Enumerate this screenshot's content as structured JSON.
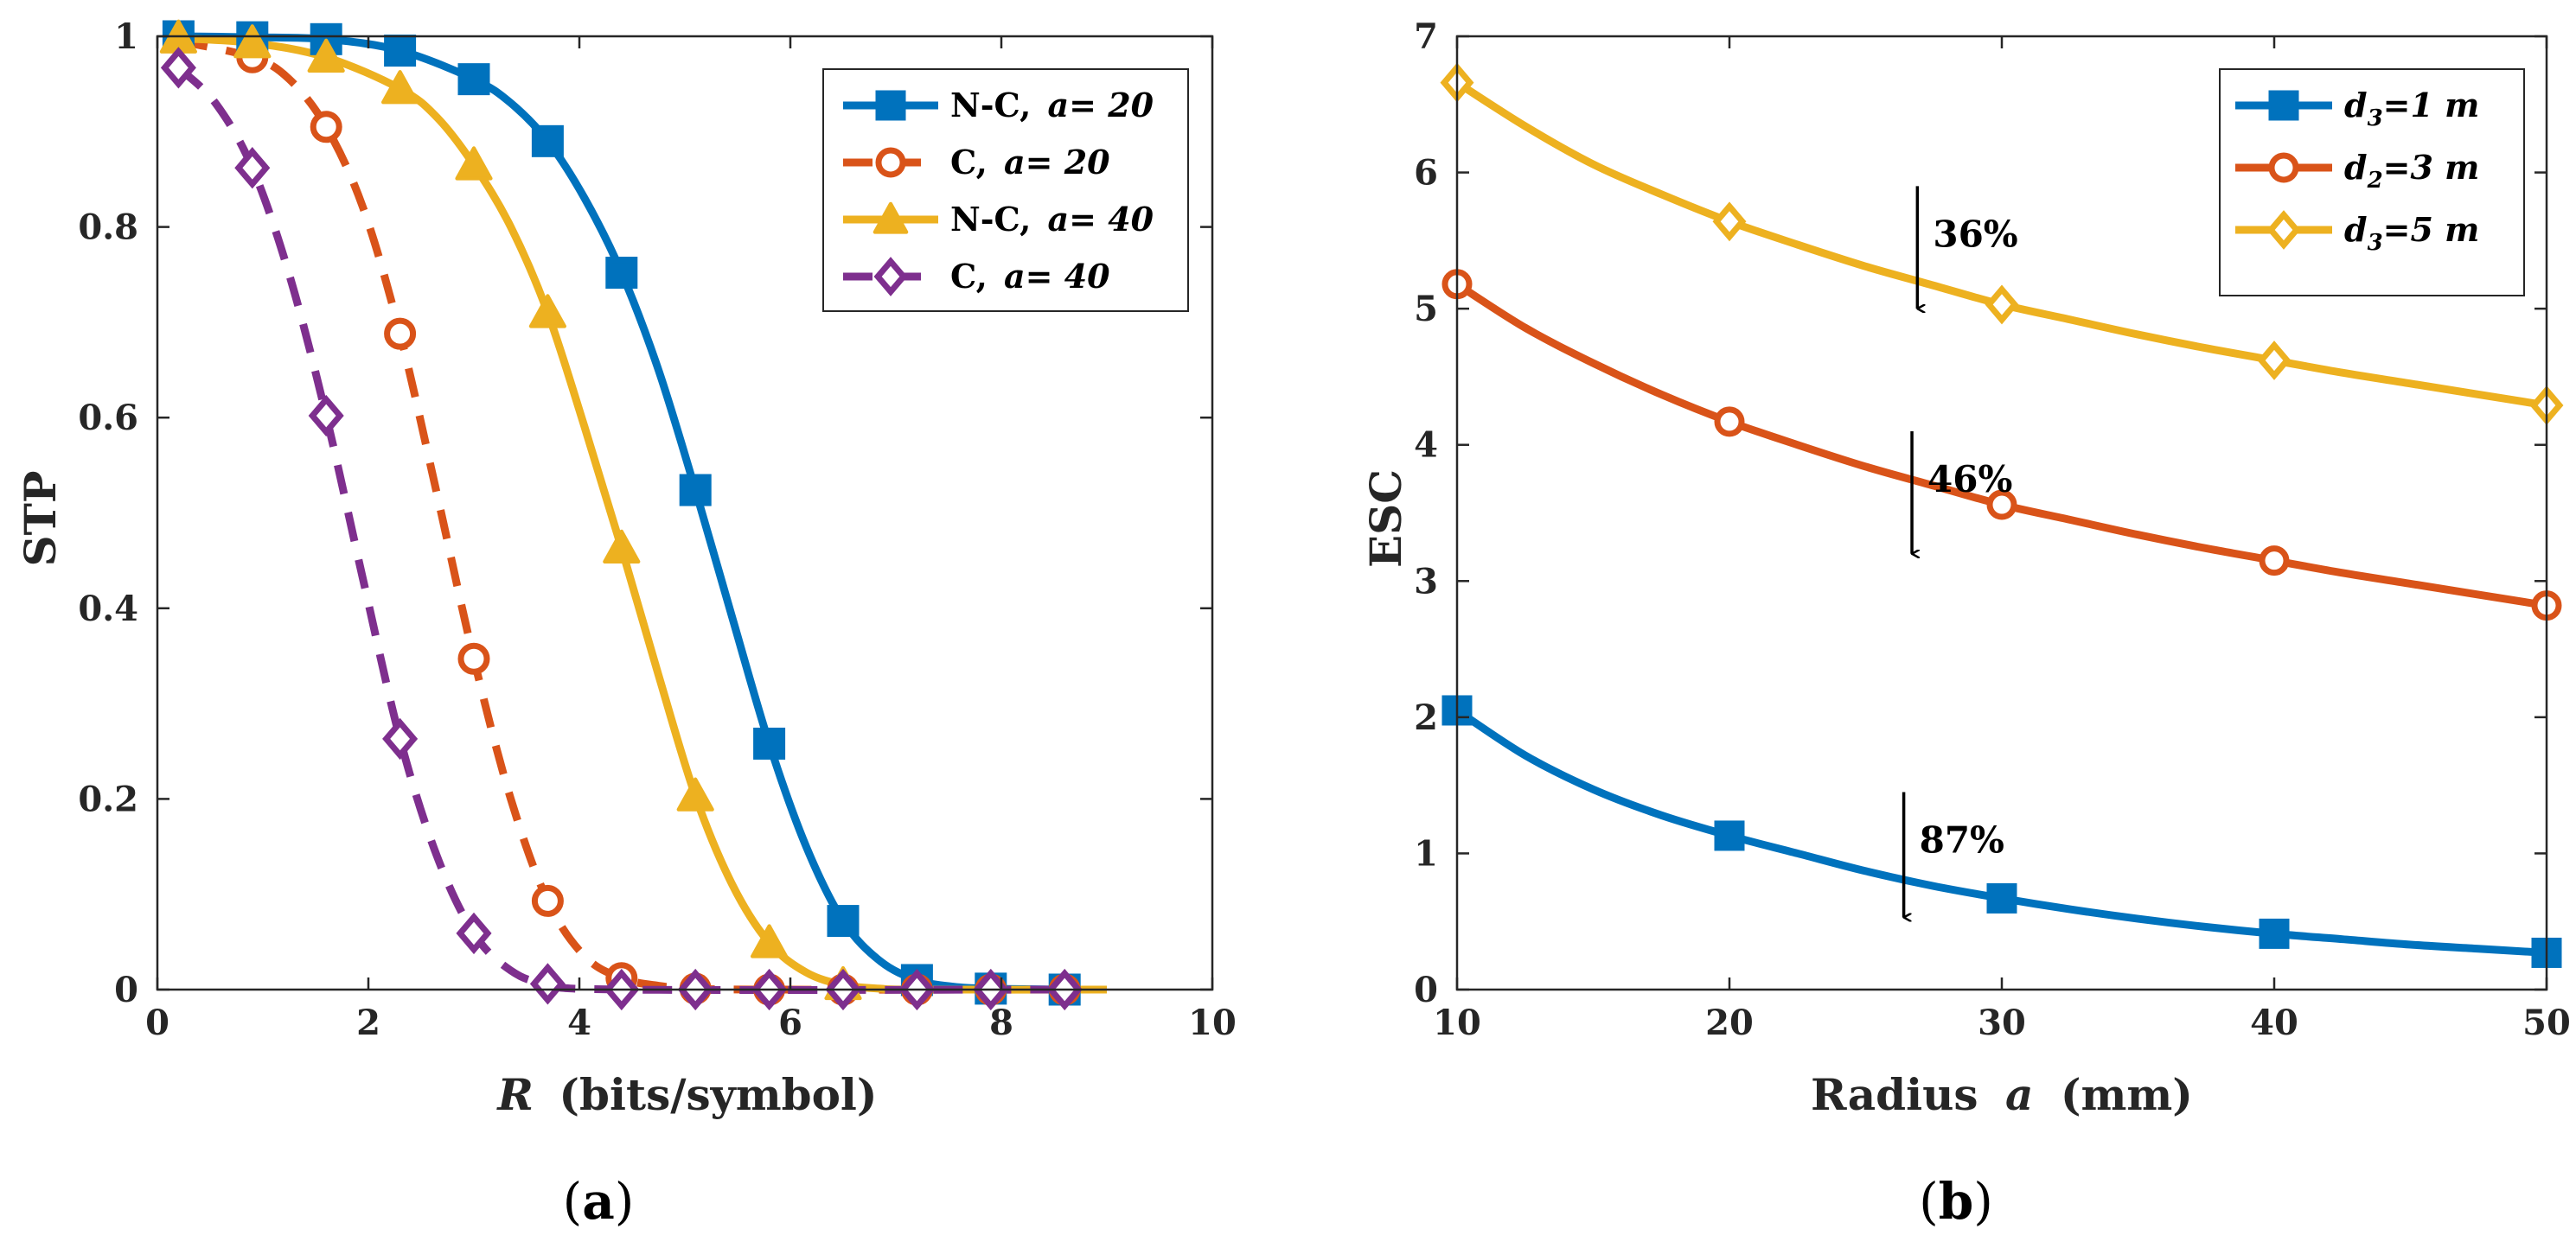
{
  "colors": {
    "blue": "#0072BD",
    "orange": "#D95319",
    "yellow": "#EDB120",
    "purple": "#7E2F8E",
    "axis": "#262626"
  },
  "chart_data": [
    {
      "id": "a",
      "type": "line",
      "caption": "(a)",
      "caption_letter": "a",
      "xlabel_var": "R",
      "xlabel_rest": "(bits/symbol)",
      "ylabel": "STP",
      "xlim": [
        0,
        10
      ],
      "ylim": [
        0,
        1
      ],
      "xticks": [
        0,
        2,
        4,
        6,
        8,
        10
      ],
      "xtick_labels": [
        "0",
        "2",
        "4",
        "6",
        "8",
        "10"
      ],
      "yticks": [
        0,
        0.2,
        0.4,
        0.6,
        0.8,
        1
      ],
      "ytick_labels": [
        "0",
        "0.2",
        "0.4",
        "0.6",
        "0.8",
        "1"
      ],
      "legend_position": "top-right",
      "series": [
        {
          "name": "N-C, a= 20",
          "legend_prefix": "N-C, ",
          "legend_var": "a= 20",
          "color": "blue",
          "dashed": false,
          "marker": "square",
          "x": [
            0.2,
            0.9,
            1.6,
            2.3,
            3.0,
            3.7,
            4.4,
            5.1,
            5.8,
            6.5,
            7.2,
            7.9,
            8.6
          ],
          "y": [
            1.0,
            0.999,
            0.997,
            0.985,
            0.955,
            0.89,
            0.752,
            0.524,
            0.258,
            0.072,
            0.01,
            0.001,
            0.0
          ],
          "curve_x": [
            0.2,
            0.9,
            1.6,
            2.3,
            3.0,
            3.35,
            3.7,
            4.05,
            4.4,
            4.75,
            5.1,
            5.45,
            5.8,
            6.15,
            6.5,
            6.85,
            7.2,
            7.55,
            7.9,
            8.6
          ],
          "curve_y": [
            1.0,
            0.999,
            0.997,
            0.985,
            0.955,
            0.93,
            0.89,
            0.83,
            0.752,
            0.65,
            0.524,
            0.39,
            0.258,
            0.15,
            0.072,
            0.03,
            0.01,
            0.003,
            0.001,
            0.0
          ]
        },
        {
          "name": "C, a= 20",
          "legend_prefix": "C, ",
          "legend_var": "a= 20",
          "color": "orange",
          "dashed": true,
          "marker": "circle",
          "x": [
            0.9,
            1.6,
            2.3,
            3.0,
            3.7,
            4.4,
            5.1,
            5.8,
            6.5,
            7.2,
            7.9,
            8.6
          ],
          "y": [
            0.978,
            0.905,
            0.688,
            0.347,
            0.093,
            0.012,
            0.001,
            0.0,
            0.0,
            0.0,
            0.0,
            0.0
          ],
          "curve_x": [
            0.2,
            0.9,
            1.25,
            1.6,
            1.95,
            2.3,
            2.65,
            3.0,
            3.35,
            3.7,
            4.05,
            4.4,
            4.75,
            5.1,
            5.8,
            8.6
          ],
          "curve_y": [
            0.995,
            0.978,
            0.955,
            0.905,
            0.82,
            0.688,
            0.52,
            0.347,
            0.2,
            0.093,
            0.035,
            0.012,
            0.004,
            0.001,
            0.0,
            0.0
          ]
        },
        {
          "name": "N-C, a= 40",
          "legend_prefix": "N-C, ",
          "legend_var": "a= 40",
          "color": "yellow",
          "dashed": false,
          "marker": "triangle",
          "x": [
            0.2,
            0.9,
            1.6,
            2.3,
            3.0,
            3.7,
            4.4,
            5.1,
            5.8,
            6.5
          ],
          "y": [
            0.998,
            0.993,
            0.978,
            0.945,
            0.865,
            0.71,
            0.463,
            0.203,
            0.049,
            0.005
          ],
          "curve_x": [
            0.2,
            0.9,
            1.6,
            2.3,
            2.65,
            3.0,
            3.35,
            3.7,
            4.05,
            4.4,
            4.75,
            5.1,
            5.45,
            5.8,
            6.15,
            6.5,
            6.85,
            7.2,
            9.0
          ],
          "curve_y": [
            0.998,
            0.993,
            0.978,
            0.945,
            0.915,
            0.865,
            0.8,
            0.71,
            0.59,
            0.463,
            0.33,
            0.203,
            0.11,
            0.049,
            0.018,
            0.005,
            0.001,
            0.0,
            0.0
          ]
        },
        {
          "name": "C, a= 40",
          "legend_prefix": "C, ",
          "legend_var": "a= 40",
          "color": "purple",
          "dashed": true,
          "marker": "diamond",
          "x": [
            0.2,
            0.9,
            1.6,
            2.3,
            3.0,
            3.7,
            4.4,
            5.1,
            5.8,
            6.5,
            7.2,
            7.9,
            8.6
          ],
          "y": [
            0.967,
            0.862,
            0.602,
            0.263,
            0.059,
            0.006,
            0.0,
            0.0,
            0.0,
            0.0,
            0.0,
            0.0,
            0.0
          ],
          "curve_x": [
            0.2,
            0.55,
            0.9,
            1.25,
            1.6,
            1.95,
            2.3,
            2.65,
            3.0,
            3.35,
            3.7,
            4.4,
            8.6
          ],
          "curve_y": [
            0.967,
            0.93,
            0.862,
            0.75,
            0.602,
            0.43,
            0.263,
            0.14,
            0.059,
            0.02,
            0.006,
            0.0,
            0.0
          ]
        }
      ]
    },
    {
      "id": "b",
      "type": "line",
      "caption": "(b)",
      "caption_letter": "b",
      "xlabel_prefix": "Radius",
      "xlabel_var": "a",
      "xlabel_rest": "(mm)",
      "ylabel": "ESC",
      "xlim": [
        10,
        50
      ],
      "ylim": [
        0,
        7
      ],
      "xticks": [
        10,
        20,
        30,
        40,
        50
      ],
      "xtick_labels": [
        "10",
        "20",
        "30",
        "40",
        "50"
      ],
      "yticks": [
        0,
        1,
        2,
        3,
        4,
        5,
        6,
        7
      ],
      "ytick_labels": [
        "0",
        "1",
        "2",
        "3",
        "4",
        "5",
        "6",
        "7"
      ],
      "legend_position": "top-right",
      "series": [
        {
          "name": "d3=1 m",
          "legend_main": "d",
          "legend_sub": "3",
          "legend_rest": "=1 m",
          "color": "blue",
          "dashed": false,
          "marker": "square",
          "x": [
            10,
            20,
            30,
            40,
            50
          ],
          "y": [
            2.05,
            1.13,
            0.67,
            0.41,
            0.27
          ],
          "curve_x": [
            10,
            12.5,
            15,
            17.5,
            20,
            22.5,
            25,
            27.5,
            30,
            32.5,
            35,
            37.5,
            40,
            42.5,
            45,
            47.5,
            50
          ],
          "curve_y": [
            2.05,
            1.72,
            1.47,
            1.28,
            1.13,
            1.0,
            0.87,
            0.76,
            0.67,
            0.59,
            0.52,
            0.46,
            0.41,
            0.37,
            0.33,
            0.3,
            0.27
          ]
        },
        {
          "name": "d2=3 m",
          "legend_main": "d",
          "legend_sub": "2",
          "legend_rest": "=3 m",
          "color": "orange",
          "dashed": false,
          "marker": "circle",
          "x": [
            10,
            20,
            30,
            40,
            50
          ],
          "y": [
            5.18,
            4.17,
            3.56,
            3.15,
            2.82
          ],
          "curve_x": [
            10,
            12.5,
            15,
            17.5,
            20,
            22.5,
            25,
            27.5,
            30,
            32.5,
            35,
            37.5,
            40,
            42.5,
            45,
            47.5,
            50
          ],
          "curve_y": [
            5.18,
            4.86,
            4.6,
            4.37,
            4.17,
            4.0,
            3.84,
            3.7,
            3.56,
            3.45,
            3.34,
            3.24,
            3.15,
            3.06,
            2.98,
            2.9,
            2.82
          ]
        },
        {
          "name": "d3=5 m",
          "legend_main": "d",
          "legend_sub": "3",
          "legend_rest": "=5 m",
          "color": "yellow",
          "dashed": false,
          "marker": "diamond",
          "x": [
            10,
            20,
            30,
            40,
            50
          ],
          "y": [
            6.66,
            5.64,
            5.03,
            4.62,
            4.29
          ],
          "curve_x": [
            10,
            12.5,
            15,
            17.5,
            20,
            22.5,
            25,
            27.5,
            30,
            32.5,
            35,
            37.5,
            40,
            42.5,
            45,
            47.5,
            50
          ],
          "curve_y": [
            6.66,
            6.34,
            6.06,
            5.84,
            5.64,
            5.47,
            5.31,
            5.17,
            5.03,
            4.92,
            4.81,
            4.71,
            4.62,
            4.53,
            4.45,
            4.37,
            4.29
          ]
        }
      ],
      "annotations": [
        {
          "text": "36%",
          "x": 26.9,
          "y_from": 5.9,
          "y_to": 5.0
        },
        {
          "text": "46%",
          "x": 26.7,
          "y_from": 4.1,
          "y_to": 3.2
        },
        {
          "text": "87%",
          "x": 26.4,
          "y_from": 1.45,
          "y_to": 0.53
        }
      ]
    }
  ]
}
